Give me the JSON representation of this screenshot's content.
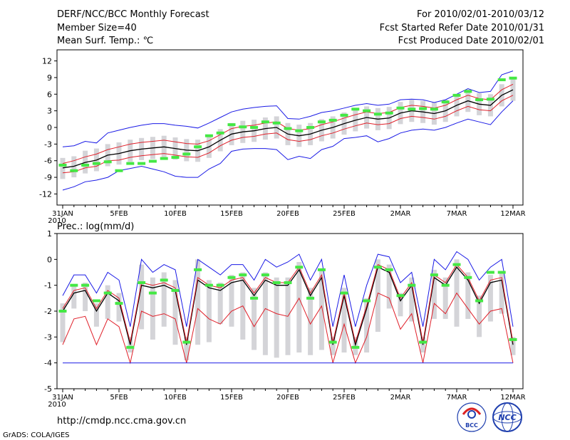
{
  "header": {
    "title": "DERF/NCC/BCC Monthly Forecast",
    "member_size": "Member Size=40",
    "variable": "Mean Surf. Temp.: ℃",
    "period": "For 2010/02/01-2010/03/12",
    "start_date": "Fcst Started Refer Date 2010/01/31",
    "produced_date": "Fcst Produced Date 2010/02/01"
  },
  "footer": {
    "url": "http://cmdp.ncc.cma.gov.cn",
    "grads": "GrADS: COLA/IGES",
    "logo_bcc": "BCC",
    "logo_ncc": "NCC"
  },
  "colors": {
    "box": "#d4d4d8",
    "mean": "#000000",
    "spread": "#e0202a",
    "extreme": "#1a1ae6",
    "obs": "#44e844"
  },
  "chart_data": [
    {
      "type": "line",
      "title": "Mean Surf. Temp.: ℃",
      "x_tick_labels": [
        "31JAN",
        "5FEB",
        "10FEB",
        "15FEB",
        "20FEB",
        "25FEB",
        "2MAR",
        "7MAR",
        "12MAR"
      ],
      "x_tick_days": [
        0,
        5,
        10,
        15,
        20,
        25,
        30,
        35,
        40
      ],
      "x_year_label": "2010",
      "ylim": [
        -14,
        14
      ],
      "yticks": [
        -12,
        -9,
        -6,
        -3,
        0,
        3,
        6,
        9,
        12
      ],
      "days": [
        0,
        1,
        2,
        3,
        4,
        5,
        6,
        7,
        8,
        9,
        10,
        11,
        12,
        13,
        14,
        15,
        16,
        17,
        18,
        19,
        20,
        21,
        22,
        23,
        24,
        25,
        26,
        27,
        28,
        29,
        30,
        31,
        32,
        33,
        34,
        35,
        36,
        37,
        38,
        39,
        40
      ],
      "series": [
        {
          "name": "ensemble mean",
          "values": [
            -7.3,
            -7,
            -6.3,
            -5.9,
            -5,
            -4.7,
            -4.2,
            -3.9,
            -3.7,
            -3.5,
            -3.8,
            -4.1,
            -4.2,
            -3.5,
            -2.3,
            -1.2,
            -0.8,
            -0.6,
            -0.2,
            0,
            -1.2,
            -1.5,
            -1.2,
            -0.5,
            0,
            0.7,
            1.3,
            1.8,
            1.5,
            1.7,
            2.6,
            3,
            2.8,
            2.5,
            3,
            4,
            4.8,
            4.2,
            4,
            5.8,
            6.8
          ]
        },
        {
          "name": "upper spread",
          "values": [
            -6.5,
            -6,
            -5.3,
            -4.8,
            -4,
            -3.5,
            -3,
            -2.7,
            -2.5,
            -2.3,
            -2.6,
            -2.9,
            -3,
            -2.4,
            -1.3,
            -0.2,
            0.2,
            0.4,
            0.8,
            1,
            -0.2,
            -0.5,
            -0.2,
            0.5,
            1,
            1.7,
            2.3,
            2.8,
            2.5,
            2.7,
            3.6,
            4,
            3.8,
            3.5,
            4,
            5,
            5.8,
            5.2,
            5,
            6.8,
            7.8
          ]
        },
        {
          "name": "lower spread",
          "values": [
            -8.2,
            -8,
            -7.3,
            -7,
            -6,
            -5.9,
            -5.4,
            -5.1,
            -4.9,
            -4.7,
            -5,
            -5.3,
            -5.4,
            -4.6,
            -3.3,
            -2.3,
            -1.8,
            -1.6,
            -1.2,
            -1,
            -2.2,
            -2.5,
            -2.2,
            -1.5,
            -1,
            -0.3,
            0.3,
            0.8,
            0.5,
            0.7,
            1.6,
            2,
            1.8,
            1.5,
            2,
            3,
            3.8,
            3.2,
            3,
            4.8,
            5.8
          ]
        },
        {
          "name": "maximum",
          "values": [
            -3.5,
            -3.3,
            -2.5,
            -2.8,
            -1,
            -0.5,
            0,
            0.4,
            0.7,
            0.7,
            0.4,
            0.2,
            -0.1,
            0.8,
            1.8,
            2.8,
            3.3,
            3.6,
            3.8,
            3.9,
            1.6,
            1.5,
            2,
            2.7,
            3,
            3.5,
            4,
            4.3,
            4,
            4.2,
            5,
            5.1,
            5,
            4.5,
            5,
            6,
            7,
            6.3,
            6.5,
            9.5,
            10.2
          ]
        },
        {
          "name": "minimum",
          "values": [
            -11.3,
            -10.7,
            -9.8,
            -9.5,
            -9,
            -7.8,
            -7.4,
            -7,
            -7.5,
            -8,
            -8.8,
            -9,
            -9,
            -7.5,
            -6.5,
            -4.3,
            -3.9,
            -3.8,
            -3.8,
            -4,
            -5.8,
            -5.2,
            -5.6,
            -4,
            -3.4,
            -2,
            -1.8,
            -1.5,
            -2.6,
            -2,
            -1,
            -0.5,
            -0.3,
            -0.5,
            0,
            0.8,
            1.5,
            1,
            0.5,
            2.8,
            4.8
          ]
        },
        {
          "name": "observed",
          "values": [
            -6.8,
            -7.8,
            -6.8,
            -6.5,
            -6.2,
            -7.8,
            -6.5,
            -6.5,
            -6.1,
            -5.6,
            -5.4,
            -4.8,
            -3.5,
            -1.5,
            -1,
            0.5,
            0.1,
            0,
            1,
            0.8,
            -0.2,
            -0.6,
            0,
            1,
            1.3,
            2.2,
            3.3,
            3,
            2.4,
            2.6,
            3.5,
            3.3,
            3.4,
            3.3,
            4.6,
            5.8,
            6.5,
            5,
            5.1,
            8.6,
            8.9
          ]
        }
      ],
      "box_range": {
        "upper": [
          -5.5,
          -5.2,
          -4.2,
          -3.8,
          -3,
          -2.7,
          -2.2,
          -1.9,
          -1.7,
          -1.5,
          -1.8,
          -2.1,
          -2.2,
          -1.5,
          -0.3,
          0.8,
          1.2,
          1.4,
          1.8,
          2,
          0.8,
          0.5,
          0.8,
          1.5,
          2,
          2.7,
          3.3,
          3.8,
          3.5,
          3.7,
          4.6,
          5,
          4.8,
          4.5,
          5,
          6,
          6.8,
          6.2,
          6,
          7.8,
          8.8
        ],
        "lower": [
          -9.3,
          -9,
          -8.3,
          -7.9,
          -7,
          -6.7,
          -6.2,
          -5.9,
          -5.7,
          -5.5,
          -5.8,
          -6.1,
          -6.2,
          -5.5,
          -4.3,
          -3.2,
          -2.8,
          -2.6,
          -2.2,
          -2,
          -3.2,
          -3.5,
          -3.2,
          -2.5,
          -2,
          -1.3,
          -0.7,
          -0.2,
          -0.5,
          -0.3,
          0.6,
          1,
          0.8,
          0.5,
          1,
          2,
          2.8,
          2.2,
          2,
          3.8,
          4.8
        ]
      }
    },
    {
      "type": "line",
      "title": "Prec.: log(mm/d)",
      "x_tick_labels": [
        "31JAN",
        "5FEB",
        "10FEB",
        "15FEB",
        "20FEB",
        "25FEB",
        "2MAR",
        "7MAR",
        "12MAR"
      ],
      "x_tick_days": [
        0,
        5,
        10,
        15,
        20,
        25,
        30,
        35,
        40
      ],
      "x_year_label": "2010",
      "ylim": [
        -5,
        1
      ],
      "yticks": [
        -5,
        -4,
        -3,
        -2,
        -1,
        0,
        1
      ],
      "days": [
        0,
        1,
        2,
        3,
        4,
        5,
        6,
        7,
        8,
        9,
        10,
        11,
        12,
        13,
        14,
        15,
        16,
        17,
        18,
        19,
        20,
        21,
        22,
        23,
        24,
        25,
        26,
        27,
        28,
        29,
        30,
        31,
        32,
        33,
        34,
        35,
        36,
        37,
        38,
        39,
        40
      ],
      "series": [
        {
          "name": "ensemble mean",
          "values": [
            -2,
            -1.3,
            -1.2,
            -2,
            -1.3,
            -1.6,
            -3.3,
            -1,
            -1.1,
            -1,
            -1.2,
            -3.3,
            -0.8,
            -1.1,
            -1.2,
            -0.9,
            -0.8,
            -1.4,
            -0.8,
            -1,
            -1,
            -0.4,
            -1.4,
            -0.7,
            -3.3,
            -1.4,
            -3.3,
            -1.9,
            -0.3,
            -0.5,
            -1.6,
            -1,
            -3.3,
            -0.7,
            -1,
            -0.3,
            -0.8,
            -1.7,
            -0.9,
            -0.8,
            -3.3
          ]
        },
        {
          "name": "upper spread",
          "values": [
            -1.9,
            -1.2,
            -1.1,
            -1.9,
            -1.2,
            -1.5,
            -3.2,
            -0.9,
            -1,
            -0.9,
            -1.1,
            -3.2,
            -0.7,
            -1,
            -1.1,
            -0.8,
            -0.7,
            -1.3,
            -0.7,
            -0.9,
            -0.9,
            -0.3,
            -1.3,
            -0.6,
            -3.2,
            -1.3,
            -3.2,
            -1.8,
            -0.2,
            -0.4,
            -1.5,
            -0.9,
            -3.2,
            -0.6,
            -0.9,
            -0.2,
            -0.7,
            -1.6,
            -0.8,
            -0.7,
            -3.2
          ]
        },
        {
          "name": "lower spread",
          "values": [
            -3.3,
            -2.3,
            -2.2,
            -3.3,
            -2.3,
            -2.6,
            -4,
            -2,
            -2.2,
            -2.1,
            -2.3,
            -4,
            -1.9,
            -2.3,
            -2.5,
            -2,
            -1.8,
            -2.6,
            -1.9,
            -2.1,
            -2.2,
            -1.5,
            -2.5,
            -1.8,
            -4,
            -2.5,
            -4,
            -3,
            -1.3,
            -1.5,
            -2.7,
            -2.1,
            -4,
            -1.7,
            -2.1,
            -1.3,
            -1.9,
            -2.5,
            -2,
            -1.9,
            -4
          ]
        },
        {
          "name": "maximum",
          "values": [
            -1.4,
            -0.6,
            -0.6,
            -1.3,
            -0.5,
            -0.8,
            -2.6,
            0,
            -0.5,
            -0.2,
            -0.4,
            -2.6,
            0,
            -0.3,
            -0.6,
            -0.2,
            -0.2,
            -0.8,
            0,
            -0.3,
            -0.1,
            0.2,
            -0.8,
            0,
            -2.6,
            -0.6,
            -2.6,
            -1,
            0.2,
            0.1,
            -0.9,
            -0.5,
            -2.6,
            0,
            -0.4,
            0.3,
            0,
            -0.8,
            -0.3,
            0,
            -2.6
          ]
        },
        {
          "name": "minimum",
          "values": [
            -4,
            -4,
            -4,
            -4,
            -4,
            -4,
            -4,
            -4,
            -4,
            -4,
            -4,
            -4,
            -4,
            -4,
            -4,
            -4,
            -4,
            -4,
            -4,
            -4,
            -4,
            -4,
            -4,
            -4,
            -4,
            -4,
            -4,
            -4,
            -4,
            -4,
            -4,
            -4,
            -4,
            -4,
            -4,
            -4,
            -4,
            -4,
            -4,
            -4,
            -4
          ]
        },
        {
          "name": "observed",
          "values": [
            -2,
            -1,
            -1,
            -1.6,
            -1.3,
            -1.7,
            -3.4,
            -0.9,
            -1.3,
            -0.8,
            -1.2,
            -3.2,
            -0.4,
            -1,
            -1,
            -0.7,
            -0.6,
            -1.5,
            -0.6,
            -0.9,
            -0.9,
            -0.3,
            -1.5,
            -0.4,
            -3.2,
            -1.3,
            -3.4,
            -1.6,
            -0.3,
            -0.4,
            -1.4,
            -1,
            -3.2,
            -0.6,
            -1,
            -0.2,
            -0.7,
            -1.6,
            -0.5,
            -0.5,
            -3.1
          ]
        }
      ],
      "box_range": {
        "upper": [
          -1.7,
          -1,
          -0.9,
          -1.7,
          -1,
          -1.3,
          -3,
          -0.2,
          -0.7,
          -0.5,
          -0.8,
          -3,
          0,
          -0.8,
          -0.9,
          -0.6,
          -0.5,
          -1.1,
          -0.5,
          -0.7,
          -0.7,
          -0.1,
          -1.1,
          -0.4,
          -3,
          -1.1,
          -3,
          -1.5,
          0,
          -0.2,
          -1.3,
          -0.7,
          -3,
          -0.4,
          -0.7,
          0,
          -0.5,
          -1.4,
          -0.6,
          -0.5,
          -3
        ],
        "lower": [
          -3.2,
          -1.9,
          -2,
          -2.6,
          -2.3,
          -2.4,
          -3.6,
          -2.7,
          -3.1,
          -2.6,
          -3.3,
          -3.9,
          -3.3,
          -3.2,
          -2.5,
          -2.6,
          -3.1,
          -3.5,
          -3.7,
          -3.8,
          -3.7,
          -3.6,
          -3.7,
          -3.5,
          -3.7,
          -3.6,
          -3.7,
          -3.6,
          -2.8,
          -1.9,
          -2.2,
          -2.4,
          -3.6,
          -2.3,
          -2.3,
          -2.6,
          -2.3,
          -3,
          -2.4,
          -2.1,
          -3.7
        ]
      }
    }
  ]
}
